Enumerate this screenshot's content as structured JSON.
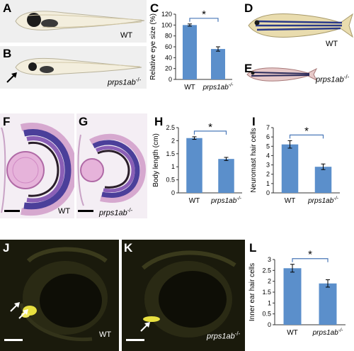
{
  "panels": {
    "A": {
      "label": "A",
      "genotype": "WT"
    },
    "B": {
      "label": "B",
      "genotype_base": "prps1ab",
      "genotype_sup": "-/-"
    },
    "C": {
      "label": "C"
    },
    "D": {
      "label": "D",
      "genotype": "WT"
    },
    "E": {
      "label": "E",
      "genotype_base": "prps1ab",
      "genotype_sup": "-/-"
    },
    "F": {
      "label": "F",
      "genotype": "WT"
    },
    "G": {
      "label": "G",
      "genotype_base": "prps1ab",
      "genotype_sup": "-/-"
    },
    "H": {
      "label": "H"
    },
    "I": {
      "label": "I"
    },
    "J": {
      "label": "J",
      "genotype": "WT"
    },
    "K": {
      "label": "K",
      "genotype_base": "prps1ab",
      "genotype_sup": "-/-"
    },
    "L": {
      "label": "L"
    }
  },
  "colors": {
    "bar": "#5b8fcb",
    "bracket": "#4a78b8",
    "confocal_bg": "#1a1a0c",
    "signal": "#e8e040"
  },
  "chart_data": [
    {
      "id": "C",
      "type": "bar",
      "categories": [
        "WT",
        "prps1ab-/-"
      ],
      "category_labels": [
        {
          "base": "WT",
          "sup": ""
        },
        {
          "base": "prps1ab",
          "sup": "-/-"
        }
      ],
      "values": [
        100,
        56
      ],
      "errors": [
        2,
        4
      ],
      "ylabel": "Relative eye size (%)",
      "ylim": [
        0,
        120
      ],
      "yticks": [
        "0",
        "20",
        "40",
        "60",
        "80",
        "100",
        "120"
      ],
      "significance": "*"
    },
    {
      "id": "H",
      "type": "bar",
      "categories": [
        "WT",
        "prps1ab-/-"
      ],
      "category_labels": [
        {
          "base": "WT",
          "sup": ""
        },
        {
          "base": "prps1ab",
          "sup": "-/-"
        }
      ],
      "values": [
        2.1,
        1.3
      ],
      "errors": [
        0.05,
        0.06
      ],
      "ylabel": "Body length (cm)",
      "ylim": [
        0,
        2.5
      ],
      "yticks": [
        "0",
        "0.5",
        "1",
        "1.5",
        "2",
        "2.5"
      ],
      "significance": "*"
    },
    {
      "id": "I",
      "type": "bar",
      "categories": [
        "WT",
        "prps1ab-/-"
      ],
      "category_labels": [
        {
          "base": "WT",
          "sup": ""
        },
        {
          "base": "prps1ab",
          "sup": "-/-"
        }
      ],
      "values": [
        5.2,
        2.8
      ],
      "errors": [
        0.4,
        0.3
      ],
      "ylabel": "Neuromast hair cells",
      "ylim": [
        0,
        7
      ],
      "yticks": [
        "0",
        "1",
        "2",
        "3",
        "4",
        "5",
        "6",
        "7"
      ],
      "significance": "*"
    },
    {
      "id": "L",
      "type": "bar",
      "categories": [
        "WT",
        "prps1ab-/-"
      ],
      "category_labels": [
        {
          "base": "WT",
          "sup": ""
        },
        {
          "base": "prps1ab",
          "sup": "-/-"
        }
      ],
      "values": [
        2.6,
        1.9
      ],
      "errors": [
        0.18,
        0.17
      ],
      "ylabel": "Inner ear hair cells",
      "ylim": [
        0,
        3
      ],
      "yticks": [
        "0",
        "0.5",
        "1",
        "1.5",
        "2",
        "2.5",
        "3"
      ],
      "significance": "*"
    }
  ]
}
